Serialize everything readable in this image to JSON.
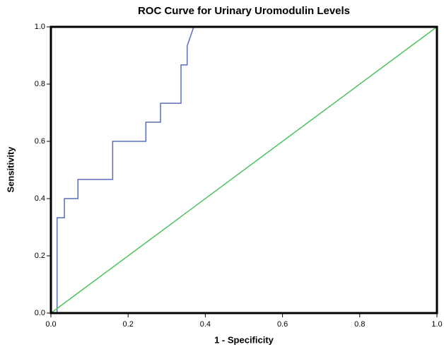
{
  "chart_data": {
    "type": "line",
    "title": "ROC Curve for Urinary Uromodulin Levels",
    "x_label": "1 - Specificity",
    "y_label": "Sensitivity",
    "xlim": [
      0,
      1
    ],
    "ylim": [
      0,
      1
    ],
    "xticks": [
      {
        "value": 0,
        "label": "0.0"
      },
      {
        "value": 0.2,
        "label": "0.2"
      },
      {
        "value": 0.4,
        "label": "0.4"
      },
      {
        "value": 0.6,
        "label": "0.6"
      },
      {
        "value": 0.8,
        "label": "0.8"
      },
      {
        "value": 1,
        "label": "1.0"
      }
    ],
    "yticks": [
      {
        "value": 0,
        "label": "0.0"
      },
      {
        "value": 0.2,
        "label": "0.2"
      },
      {
        "value": 0.4,
        "label": "0.4"
      },
      {
        "value": 0.6,
        "label": "0.6"
      },
      {
        "value": 0.8,
        "label": "0.8"
      },
      {
        "value": 1,
        "label": "1.0"
      }
    ],
    "series": [
      {
        "color": "#5b6fb5",
        "x": [
          0,
          0.016,
          0.016,
          0.035,
          0.035,
          0.07,
          0.07,
          0.16,
          0.16,
          0.246,
          0.246,
          0.284,
          0.284,
          0.337,
          0.337,
          0.353,
          0.353,
          0.37,
          1
        ],
        "values": [
          0,
          0,
          0.333,
          0.333,
          0.4,
          0.4,
          0.467,
          0.467,
          0.6,
          0.6,
          0.667,
          0.667,
          0.733,
          0.733,
          0.867,
          0.867,
          0.933,
          1,
          1
        ]
      },
      {
        "color": "#4cc45a",
        "x": [
          0,
          1
        ],
        "values": [
          0,
          1
        ]
      }
    ]
  }
}
